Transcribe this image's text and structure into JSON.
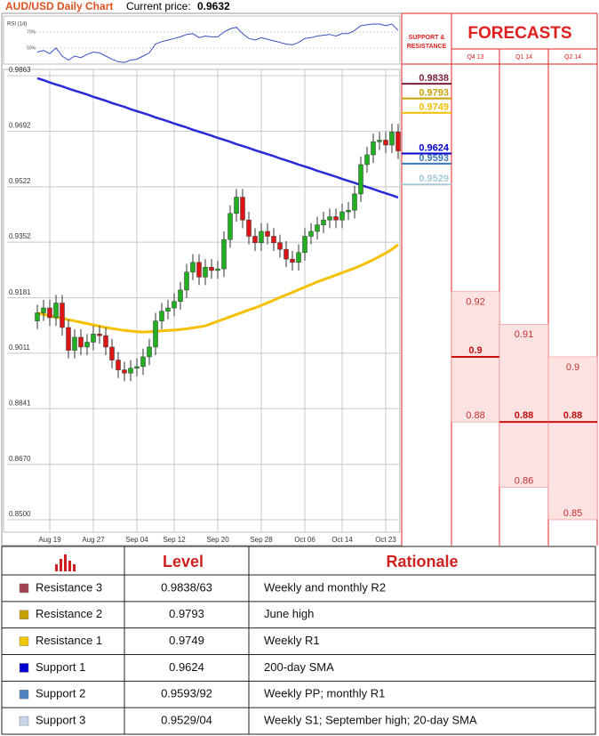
{
  "chart_data": {
    "type": "candlestick",
    "title": "AUD/USD Daily Chart",
    "current_price_label": "Current price:",
    "current_price": 0.9632,
    "categories": [
      null,
      null,
      "Aug 19",
      null,
      null,
      null,
      null,
      null,
      null,
      "Aug 27",
      null,
      null,
      null,
      null,
      null,
      null,
      "Sep 04",
      null,
      null,
      null,
      null,
      null,
      "Sep 12",
      null,
      null,
      null,
      null,
      null,
      null,
      "Sep 20",
      null,
      null,
      null,
      null,
      null,
      null,
      "Sep 28",
      null,
      null,
      null,
      null,
      null,
      null,
      "Oct 06",
      null,
      null,
      null,
      null,
      null,
      "Oct 14",
      null,
      null,
      null,
      null,
      null,
      null,
      "Oct 23",
      null,
      null
    ],
    "open": [
      0.911,
      0.9135,
      0.915,
      0.912,
      0.9165,
      0.909,
      0.902,
      0.906,
      0.903,
      0.9045,
      0.907,
      0.9065,
      0.903,
      0.899,
      0.896,
      0.895,
      0.8965,
      0.897,
      0.9,
      0.903,
      0.911,
      0.914,
      0.915,
      0.917,
      0.9205,
      0.926,
      0.929,
      0.9245,
      0.9275,
      0.9265,
      0.927,
      0.936,
      0.944,
      0.949,
      0.942,
      0.937,
      0.935,
      0.9385,
      0.937,
      0.935,
      0.933,
      0.93,
      0.929,
      0.932,
      0.937,
      0.9385,
      0.9405,
      0.942,
      0.943,
      0.942,
      0.9445,
      0.945,
      0.95,
      0.959,
      0.962,
      0.966,
      0.9665,
      0.965,
      0.969
    ],
    "high": [
      0.916,
      0.9175,
      0.9175,
      0.919,
      0.919,
      0.9115,
      0.9085,
      0.9085,
      0.907,
      0.9095,
      0.9095,
      0.909,
      0.9055,
      0.9015,
      0.8985,
      0.899,
      0.8995,
      0.9025,
      0.9055,
      0.9135,
      0.9165,
      0.9175,
      0.9195,
      0.923,
      0.9285,
      0.9315,
      0.9315,
      0.93,
      0.93,
      0.9295,
      0.9385,
      0.9465,
      0.9515,
      0.9515,
      0.9445,
      0.9395,
      0.941,
      0.941,
      0.9395,
      0.9375,
      0.9355,
      0.9325,
      0.9345,
      0.9395,
      0.941,
      0.943,
      0.9445,
      0.9455,
      0.9455,
      0.947,
      0.9475,
      0.9525,
      0.9615,
      0.9645,
      0.9685,
      0.969,
      0.969,
      0.9715,
      0.9715
    ],
    "low": [
      0.9085,
      0.911,
      0.9095,
      0.9095,
      0.9065,
      0.8995,
      0.8995,
      0.9005,
      0.9005,
      0.902,
      0.904,
      0.9005,
      0.8965,
      0.8935,
      0.8925,
      0.8925,
      0.894,
      0.8945,
      0.8975,
      0.9005,
      0.9085,
      0.9115,
      0.9125,
      0.9145,
      0.918,
      0.9235,
      0.922,
      0.922,
      0.924,
      0.924,
      0.9245,
      0.9335,
      0.9415,
      0.9395,
      0.9345,
      0.9325,
      0.9325,
      0.9345,
      0.9325,
      0.9305,
      0.9275,
      0.9265,
      0.9265,
      0.9295,
      0.9345,
      0.936,
      0.938,
      0.9395,
      0.9395,
      0.9395,
      0.942,
      0.9425,
      0.9475,
      0.9565,
      0.9595,
      0.9635,
      0.9625,
      0.9625,
      0.9607
    ],
    "close": [
      0.9135,
      0.915,
      0.912,
      0.9165,
      0.909,
      0.902,
      0.906,
      0.903,
      0.9045,
      0.907,
      0.9065,
      0.903,
      0.899,
      0.896,
      0.895,
      0.8965,
      0.897,
      0.9,
      0.903,
      0.911,
      0.914,
      0.915,
      0.917,
      0.9205,
      0.926,
      0.929,
      0.9245,
      0.9275,
      0.9265,
      0.927,
      0.936,
      0.944,
      0.949,
      0.942,
      0.937,
      0.935,
      0.9385,
      0.937,
      0.935,
      0.933,
      0.93,
      0.929,
      0.932,
      0.937,
      0.9385,
      0.9405,
      0.942,
      0.943,
      0.942,
      0.9445,
      0.945,
      0.95,
      0.959,
      0.962,
      0.966,
      0.9665,
      0.965,
      0.969,
      0.9632
    ],
    "up_color": "#22b022",
    "down_color": "#dd1515",
    "overlays": [
      {
        "color": "#2a2ad8",
        "values": [
          0.9855,
          0.9849,
          0.9842,
          0.9836,
          0.983,
          0.9823,
          0.9817,
          0.9811,
          0.9805,
          0.9798,
          0.9792,
          0.9786,
          0.9779,
          0.9773,
          0.9767,
          0.976,
          0.9754,
          0.9748,
          0.9742,
          0.9735,
          0.9729,
          0.9723,
          0.9716,
          0.971,
          0.9704,
          0.9697,
          0.9691,
          0.9685,
          0.9679,
          0.9672,
          0.9666,
          0.966,
          0.9653,
          0.9647,
          0.9641,
          0.9634,
          0.9628,
          0.9622,
          0.9616,
          0.9609,
          0.9603,
          0.9597,
          0.959,
          0.9584,
          0.9578,
          0.9571,
          0.9565,
          0.9559,
          0.9553,
          0.9546,
          0.954,
          0.9534,
          0.9527,
          0.9521,
          0.9515,
          0.9508,
          0.9502,
          0.9496,
          0.9489
        ]
      },
      {
        "color": "#f5c000",
        "values": [
          0.9134,
          0.913,
          0.9126,
          0.9122,
          0.9118,
          0.9114,
          0.911,
          0.9106,
          0.9102,
          0.9098,
          0.9094,
          0.909,
          0.9087,
          0.9084,
          0.9081,
          0.9079,
          0.9077,
          0.9076,
          0.9077,
          0.9078,
          0.908,
          0.9081,
          0.9082,
          0.9084,
          0.9086,
          0.9089,
          0.9092,
          0.9095,
          0.9102,
          0.9109,
          0.9116,
          0.9123,
          0.913,
          0.9137,
          0.9144,
          0.915,
          0.9158,
          0.9166,
          0.9174,
          0.9182,
          0.919,
          0.9198,
          0.9206,
          0.9214,
          0.9222,
          0.923,
          0.9237,
          0.9244,
          0.9251,
          0.9258,
          0.9265,
          0.9272,
          0.928,
          0.9289,
          0.9298,
          0.9308,
          0.9318,
          0.933,
          0.9344
        ]
      }
    ],
    "ylim": [
      0.85,
      0.9863
    ],
    "yticks": [
      0.9863,
      0.9692,
      0.9522,
      0.9352,
      0.9181,
      {
        "value": 0.9011,
        "label": "0.9011"
      },
      0.8841,
      {
        "value": 0.867,
        "label": "0.8670"
      },
      {
        "value": 0.85,
        "label": "0.8500"
      }
    ],
    "grid": true,
    "rsi": {
      "label": "RSI (14)",
      "color": "#3a50c0",
      "ylim": [
        30,
        90
      ],
      "yticks": [
        {
          "value": 70,
          "label": "70%"
        },
        {
          "value": 50,
          "label": "50%"
        }
      ],
      "values": [
        45,
        47,
        43,
        50,
        40,
        35,
        40,
        38,
        42,
        45,
        44,
        40,
        36,
        33,
        32,
        35,
        36,
        40,
        44,
        55,
        58,
        60,
        62,
        64,
        67,
        68,
        63,
        65,
        64,
        64,
        70,
        74,
        76,
        68,
        62,
        60,
        63,
        61,
        59,
        57,
        55,
        54,
        57,
        62,
        63,
        65,
        66,
        67,
        65,
        68,
        68,
        72,
        78,
        79,
        80,
        80,
        78,
        80,
        72
      ]
    },
    "levels_title": [
      "SUPPORT &",
      "RESISTANCE"
    ],
    "levels": [
      {
        "value": 0.9838,
        "color": "#7a1f3d"
      },
      {
        "value": 0.9793,
        "color": "#c8a000"
      },
      {
        "value": 0.9749,
        "color": "#f0c000"
      },
      {
        "value": 0.9624,
        "color": "#0000c8"
      },
      {
        "value": 0.9593,
        "color": "#3f78b8"
      },
      {
        "value": 0.9529,
        "color": "#a8c8d8"
      }
    ],
    "forecasts_title": "FORECASTS",
    "forecasts": [
      {
        "period": "Q4 13",
        "high": 0.92,
        "mid": 0.9,
        "low": 0.88
      },
      {
        "period": "Q1 14",
        "high": 0.91,
        "mid": 0.88,
        "low": 0.86
      },
      {
        "period": "Q2 14",
        "high": 0.9,
        "mid": 0.88,
        "low": 0.85
      }
    ]
  },
  "table": {
    "header": [
      "Level",
      "Rationale"
    ],
    "rows": [
      {
        "color": "#a04050",
        "name": "Resistance 3",
        "level": "0.9838/63",
        "rationale": "Weekly and monthly R2"
      },
      {
        "color": "#c8a000",
        "name": "Resistance 2",
        "level": "0.9793",
        "rationale": "June high"
      },
      {
        "color": "#f0c800",
        "name": "Resistance 1",
        "level": "0.9749",
        "rationale": "Weekly R1"
      },
      {
        "color": "#0000d0",
        "name": "Support 1",
        "level": "0.9624",
        "rationale": "200-day SMA"
      },
      {
        "color": "#4a80c0",
        "name": "Support 2",
        "level": "0.9593/92",
        "rationale": "Weekly PP; monthly R1"
      },
      {
        "color": "#c8d4e8",
        "name": "Support 3",
        "level": "0.9529/04",
        "rationale": "Weekly S1; September high; 20-day SMA"
      }
    ]
  }
}
